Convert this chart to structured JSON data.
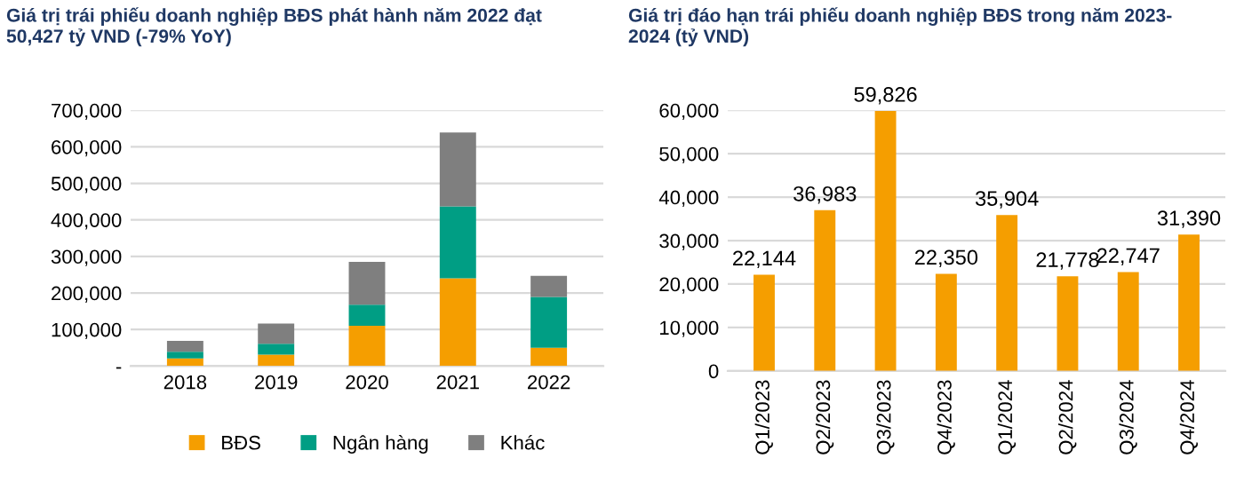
{
  "chart_data": [
    {
      "type": "bar",
      "title": "Giá trị trái phiếu doanh nghiệp BĐS phát hành năm 2022 đạt\n50,427 tỷ VND (-79% YoY)",
      "categories": [
        "2018",
        "2019",
        "2020",
        "2021",
        "2022"
      ],
      "stacked": true,
      "series": [
        {
          "name": "BĐS",
          "color": "#f59e00",
          "values": [
            21000,
            31000,
            110000,
            240000,
            50000
          ]
        },
        {
          "name": "Ngân hàng",
          "color": "#009e84",
          "values": [
            18000,
            30000,
            58000,
            197000,
            139000
          ]
        },
        {
          "name": "Khác",
          "color": "#7f7f7f",
          "values": [
            30000,
            55000,
            117000,
            202000,
            58000
          ]
        }
      ],
      "ylim": [
        0,
        700000
      ],
      "yticks": [
        {
          "value": 0,
          "label": "-"
        },
        {
          "value": 100000,
          "label": "100,000"
        },
        {
          "value": 200000,
          "label": "200,000"
        },
        {
          "value": 300000,
          "label": "300,000"
        },
        {
          "value": 400000,
          "label": "400,000"
        },
        {
          "value": 500000,
          "label": "500,000"
        },
        {
          "value": 600000,
          "label": "600,000"
        },
        {
          "value": 700000,
          "label": "700,000"
        }
      ],
      "grid": "y",
      "legend": "bottom"
    },
    {
      "type": "bar",
      "title": "Giá trị đáo hạn trái phiếu doanh nghiệp BĐS trong năm 2023-\n2024 (tỷ VND)",
      "categories": [
        "Q1/2023",
        "Q2/2023",
        "Q3/2023",
        "Q4/2023",
        "Q1/2024",
        "Q2/2024",
        "Q3/2024",
        "Q4/2024"
      ],
      "series": [
        {
          "color": "#f59e00",
          "values": [
            22144,
            36983,
            59826,
            22350,
            35904,
            21778,
            22747,
            31390
          ]
        }
      ],
      "value_labels": [
        "22,144",
        "36,983",
        "59,826",
        "22,350",
        "35,904",
        "21,778",
        "22,747",
        "31,390"
      ],
      "ylim": [
        0,
        60000
      ],
      "yticks": [
        {
          "value": 0,
          "label": "0"
        },
        {
          "value": 10000,
          "label": "10,000"
        },
        {
          "value": 20000,
          "label": "20,000"
        },
        {
          "value": 30000,
          "label": "30,000"
        },
        {
          "value": 40000,
          "label": "40,000"
        },
        {
          "value": 50000,
          "label": "50,000"
        },
        {
          "value": 60000,
          "label": "60,000"
        }
      ],
      "grid": "y",
      "legend": false
    }
  ]
}
